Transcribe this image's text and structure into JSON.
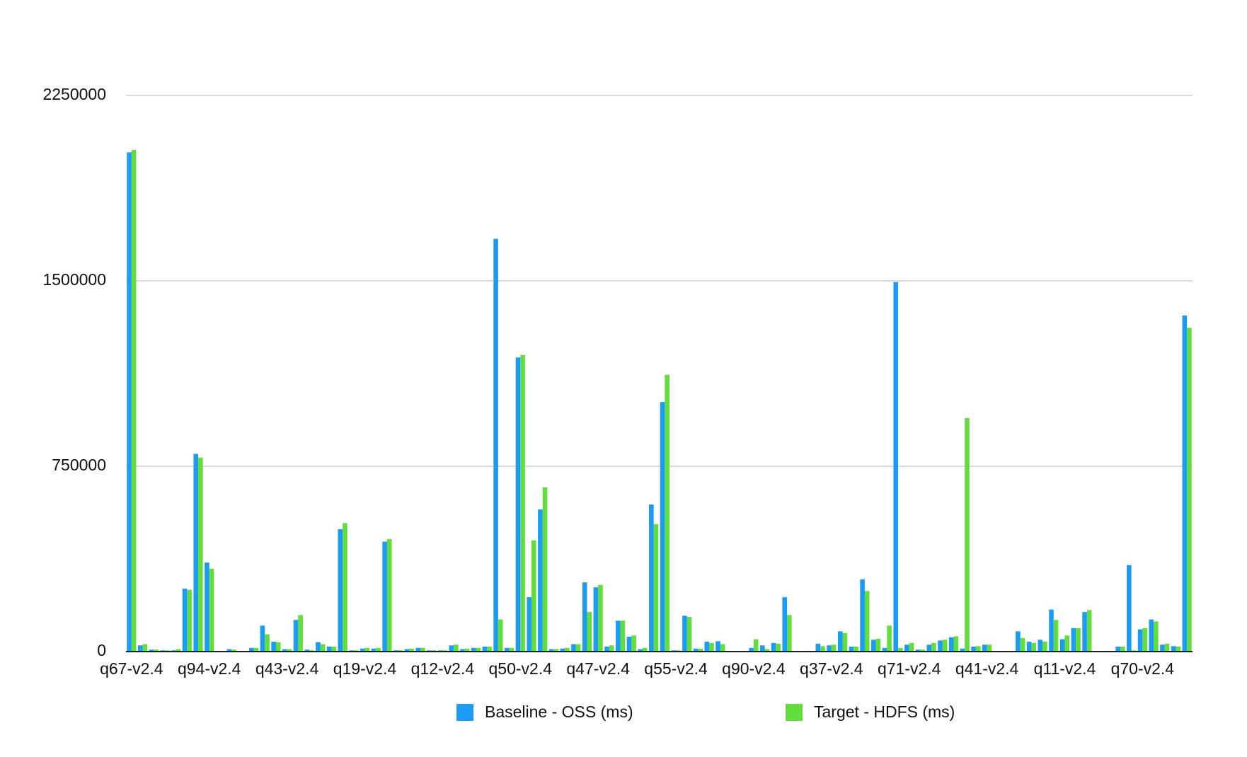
{
  "chart_data": {
    "type": "bar",
    "categories": [
      "q67-v2.4",
      null,
      null,
      null,
      null,
      null,
      null,
      "q94-v2.4",
      null,
      null,
      null,
      null,
      null,
      null,
      "q43-v2.4",
      null,
      null,
      null,
      null,
      null,
      null,
      "q19-v2.4",
      null,
      null,
      null,
      null,
      null,
      null,
      "q12-v2.4",
      null,
      null,
      null,
      null,
      null,
      null,
      "q50-v2.4",
      null,
      null,
      null,
      null,
      null,
      null,
      "q47-v2.4",
      null,
      null,
      null,
      null,
      null,
      null,
      "q55-v2.4",
      null,
      null,
      null,
      null,
      null,
      null,
      "q90-v2.4",
      null,
      null,
      null,
      null,
      null,
      null,
      "q37-v2.4",
      null,
      null,
      null,
      null,
      null,
      null,
      "q71-v2.4",
      null,
      null,
      null,
      null,
      null,
      null,
      "q41-v2.4",
      null,
      null,
      null,
      null,
      null,
      null,
      "q11-v2.4",
      null,
      null,
      null,
      null,
      null,
      null,
      "q70-v2.4",
      null,
      null,
      null,
      null
    ],
    "series": [
      {
        "name": "Baseline - OSS (ms)",
        "color": "#1a9cf5",
        "values": [
          2020000,
          25000,
          8000,
          5000,
          5000,
          255000,
          800000,
          360000,
          3000,
          10000,
          3000,
          15000,
          105000,
          40000,
          10000,
          128000,
          8000,
          38000,
          20000,
          495000,
          5000,
          12000,
          12000,
          445000,
          5000,
          10000,
          15000,
          5000,
          5000,
          25000,
          10000,
          15000,
          20000,
          1670000,
          15000,
          1190000,
          220000,
          575000,
          10000,
          12000,
          30000,
          280000,
          260000,
          20000,
          125000,
          60000,
          10000,
          595000,
          1010000,
          5000,
          145000,
          12000,
          40000,
          42000,
          3000,
          3000,
          15000,
          25000,
          35000,
          220000,
          3000,
          3000,
          32000,
          25000,
          82000,
          20000,
          292000,
          48000,
          15000,
          1495000,
          28000,
          8000,
          28000,
          45000,
          58000,
          12000,
          20000,
          28000,
          3000,
          3000,
          82000,
          40000,
          48000,
          170000,
          50000,
          95000,
          160000,
          3000,
          3000,
          20000,
          350000,
          90000,
          130000,
          28000,
          22000,
          1360000
        ]
      },
      {
        "name": "Target - HDFS (ms)",
        "color": "#62dd3c",
        "values": [
          2030000,
          30000,
          8000,
          5000,
          10000,
          250000,
          785000,
          335000,
          3000,
          8000,
          3000,
          15000,
          70000,
          38000,
          10000,
          148000,
          5000,
          30000,
          20000,
          520000,
          5000,
          15000,
          15000,
          455000,
          5000,
          12000,
          15000,
          5000,
          5000,
          28000,
          12000,
          15000,
          20000,
          130000,
          15000,
          1200000,
          450000,
          665000,
          10000,
          15000,
          30000,
          160000,
          270000,
          25000,
          125000,
          65000,
          15000,
          515000,
          1120000,
          5000,
          140000,
          12000,
          35000,
          30000,
          3000,
          3000,
          50000,
          10000,
          32000,
          148000,
          3000,
          3000,
          22000,
          28000,
          75000,
          20000,
          245000,
          52000,
          105000,
          15000,
          35000,
          8000,
          35000,
          48000,
          62000,
          945000,
          22000,
          28000,
          3000,
          3000,
          55000,
          35000,
          40000,
          128000,
          65000,
          95000,
          168000,
          3000,
          3000,
          20000,
          5000,
          95000,
          122000,
          32000,
          20000,
          1310000
        ]
      }
    ],
    "ylim": [
      0,
      2250000
    ],
    "yticks": [
      0,
      750000,
      1500000,
      2250000
    ],
    "grid": true
  }
}
